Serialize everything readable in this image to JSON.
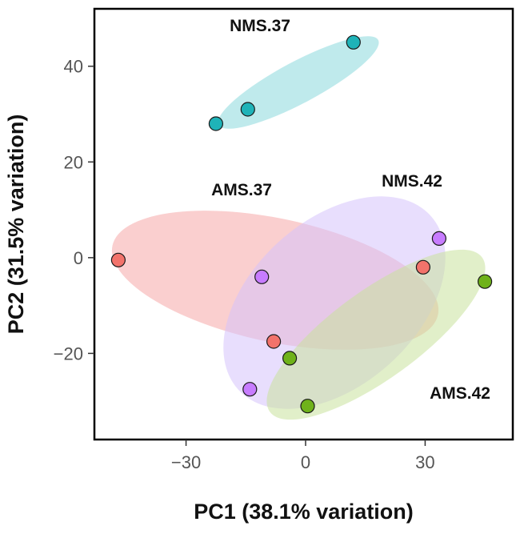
{
  "chart_data": {
    "type": "scatter",
    "title": "",
    "xlabel": "PC1 (38.1% variation)",
    "ylabel": "PC2 (31.5% variation)",
    "xlim": [
      -53,
      52
    ],
    "ylim": [
      -38,
      52
    ],
    "xticks": [
      -30,
      0,
      30
    ],
    "yticks": [
      -20,
      0,
      20,
      40
    ],
    "xtick_labels": [
      "−30",
      "0",
      "30"
    ],
    "ytick_labels": [
      "−20",
      "0",
      "20",
      "40"
    ],
    "grid": false,
    "legend": "none",
    "series": [
      {
        "name": "NMS.37",
        "color": "#1fb3b8",
        "ellipse_color": "#8ad8dd",
        "points": [
          {
            "x": -22.5,
            "y": 28
          },
          {
            "x": -14.5,
            "y": 31
          },
          {
            "x": 12,
            "y": 45
          }
        ]
      },
      {
        "name": "AMS.37",
        "color": "#f2736b",
        "ellipse_color": "#f5a8a8",
        "points": [
          {
            "x": -47,
            "y": -0.5
          },
          {
            "x": -8,
            "y": -17.5
          },
          {
            "x": 29.5,
            "y": -2
          }
        ]
      },
      {
        "name": "NMS.42",
        "color": "#c77cff",
        "ellipse_color": "#d6c2fb",
        "points": [
          {
            "x": 33.5,
            "y": 4
          },
          {
            "x": -11,
            "y": -4
          },
          {
            "x": -14,
            "y": -27.5
          }
        ]
      },
      {
        "name": "AMS.42",
        "color": "#6fb21a",
        "ellipse_color": "#c9e29c",
        "points": [
          {
            "x": 45,
            "y": -5
          },
          {
            "x": -4,
            "y": -21
          },
          {
            "x": 0.5,
            "y": -31
          }
        ]
      }
    ]
  }
}
